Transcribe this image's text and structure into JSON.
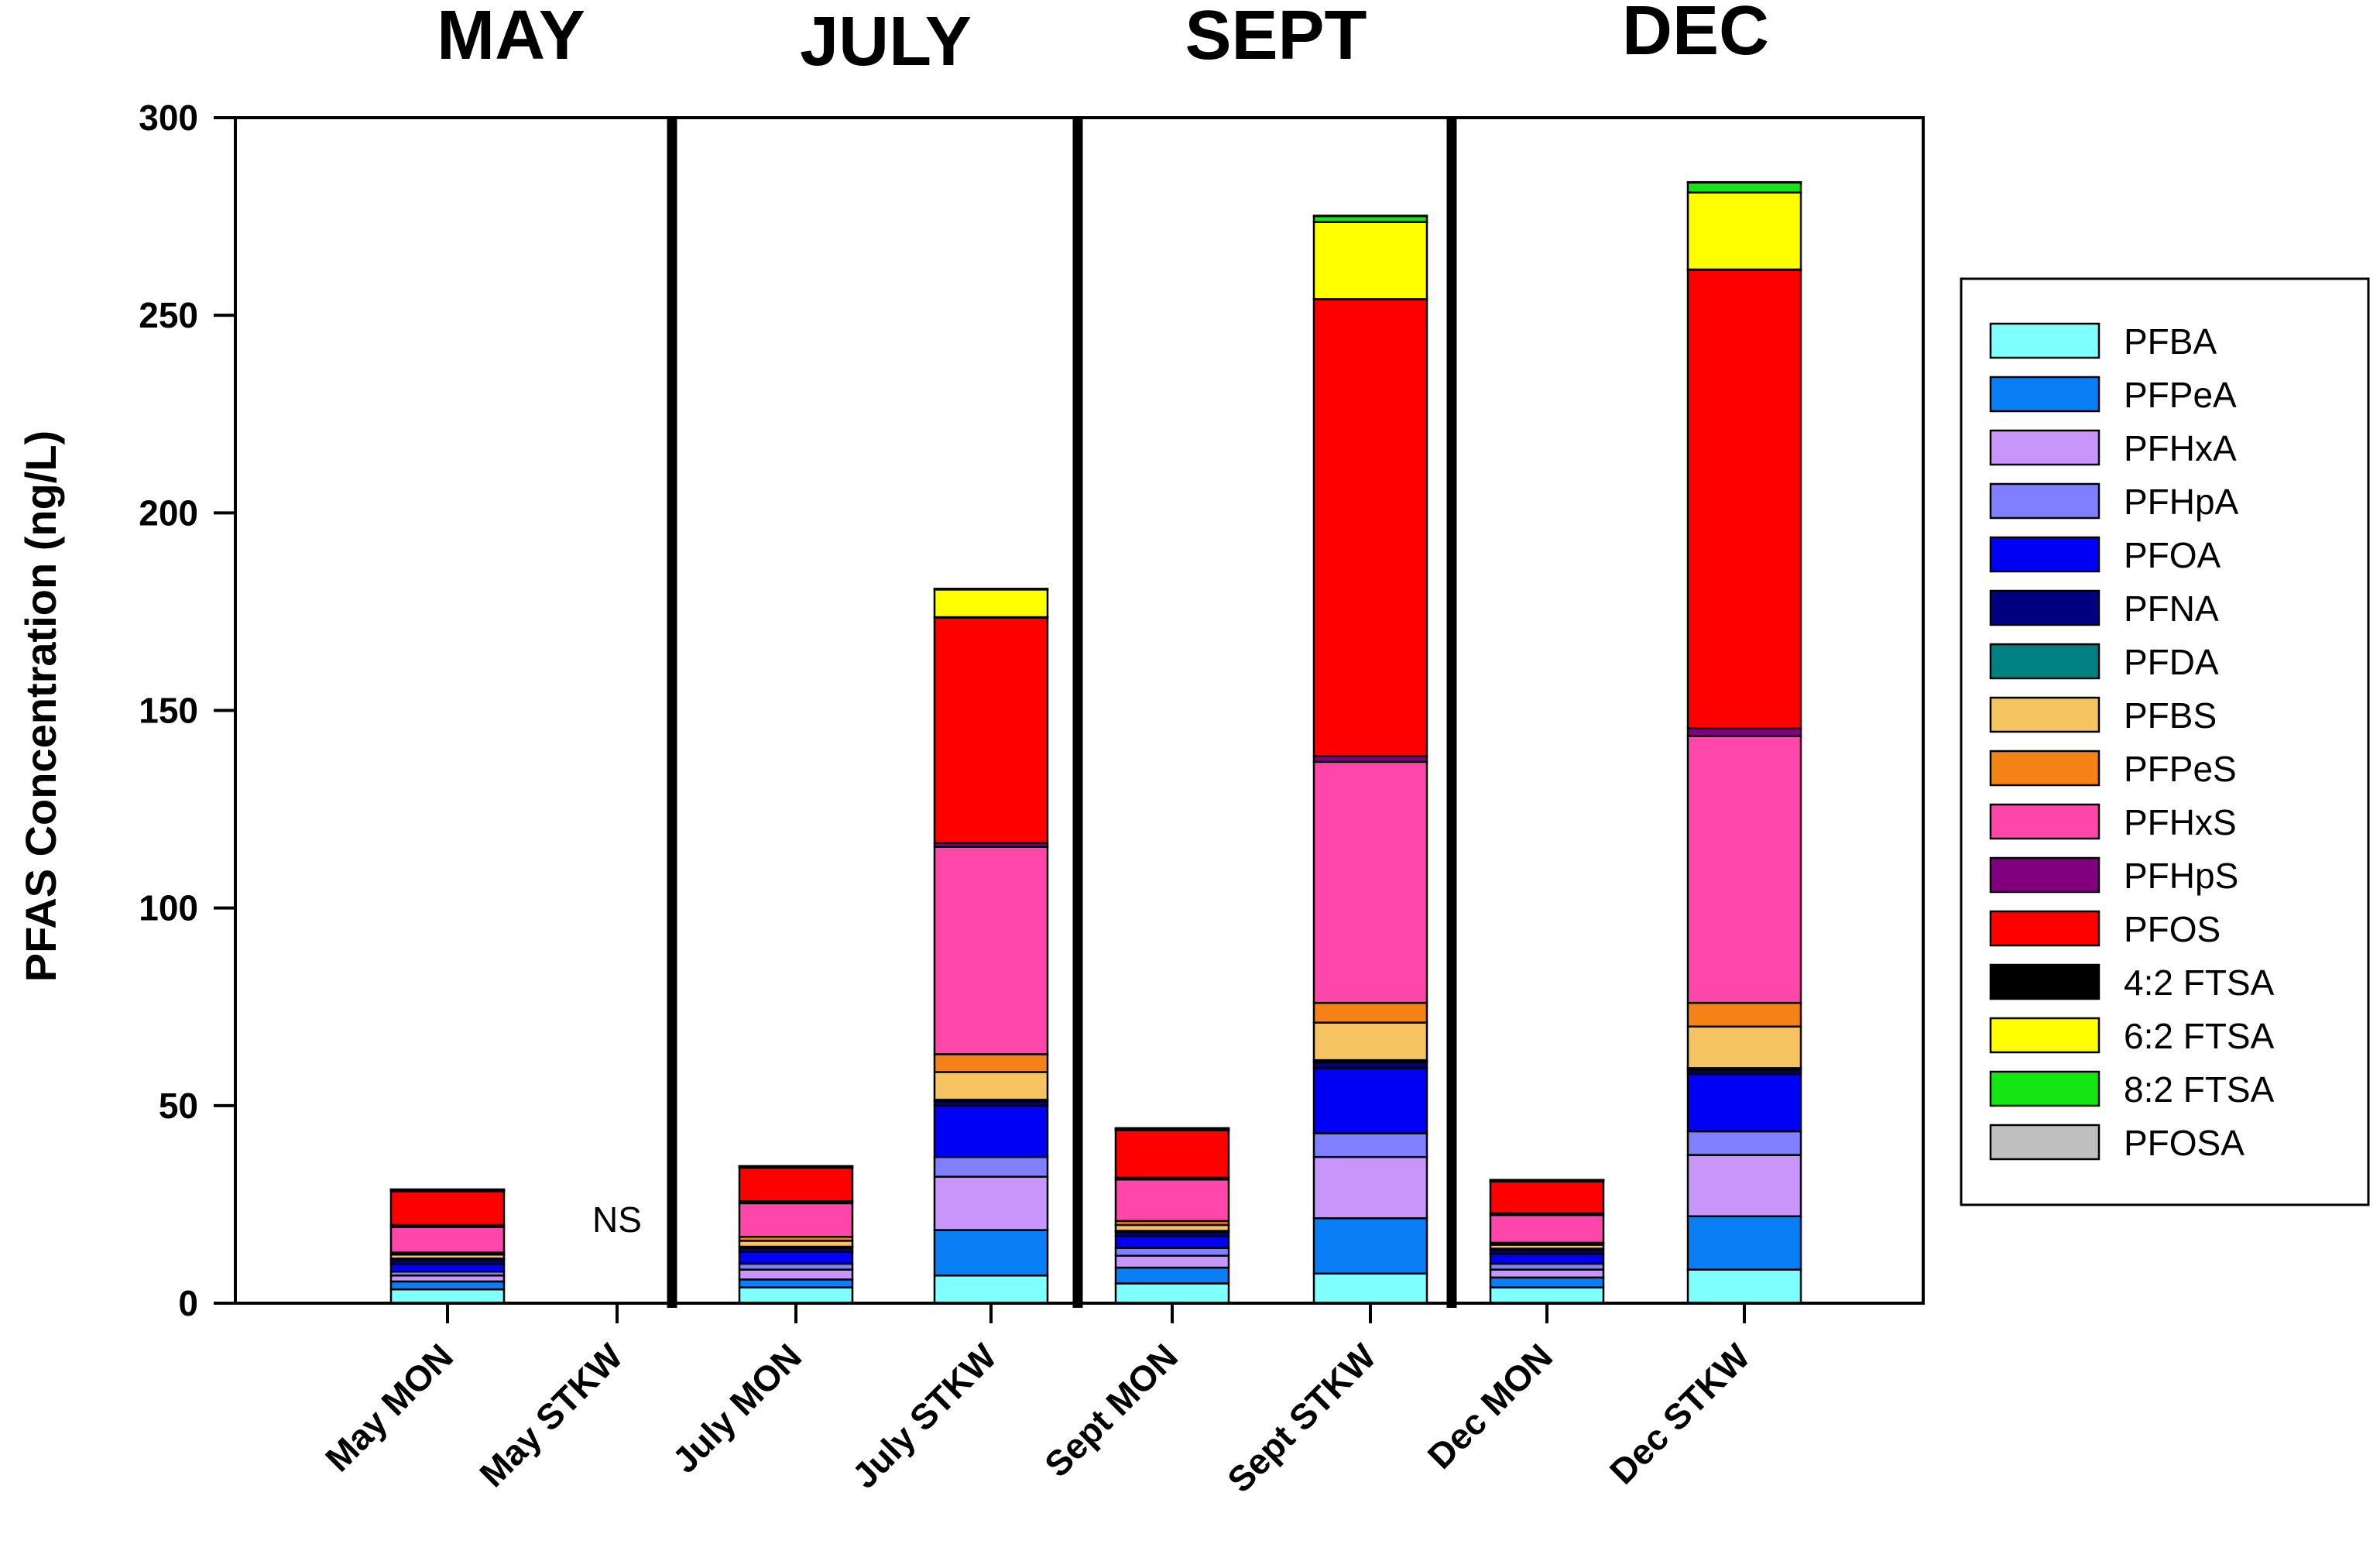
{
  "chart_data": {
    "type": "bar",
    "stacked": true,
    "ylabel": "PFAS Concentration (ng/L)",
    "xlabel": "",
    "ylim": [
      0,
      300
    ],
    "yticks": [
      0,
      50,
      100,
      150,
      200,
      250,
      300
    ],
    "categories": [
      "May MON",
      "May STKW",
      "July MON",
      "July STKW",
      "Sept MON",
      "Sept STKW",
      "Dec MON",
      "Dec STKW"
    ],
    "groups": [
      {
        "label": "MAY",
        "categories": [
          "May MON",
          "May STKW"
        ]
      },
      {
        "label": "JULY",
        "categories": [
          "July MON",
          "July STKW"
        ]
      },
      {
        "label": "SEPT",
        "categories": [
          "Sept MON",
          "Sept STKW"
        ]
      },
      {
        "label": "DEC",
        "categories": [
          "Dec MON",
          "Dec STKW"
        ]
      }
    ],
    "annotations": [
      {
        "category": "May STKW",
        "text": "NS"
      }
    ],
    "legend_position": "right",
    "series": [
      {
        "name": "PFBA",
        "color": "#80ffff",
        "values": [
          3.5,
          null,
          4.0,
          7.0,
          5.0,
          7.5,
          4.0,
          8.5
        ]
      },
      {
        "name": "PFPeA",
        "color": "#0a7ff5",
        "values": [
          2.0,
          null,
          2.0,
          11.5,
          4.0,
          14.0,
          2.5,
          13.5
        ]
      },
      {
        "name": "PFHxA",
        "color": "#c896fa",
        "values": [
          1.5,
          null,
          2.5,
          13.5,
          3.0,
          15.5,
          2.0,
          15.5
        ]
      },
      {
        "name": "PFHpA",
        "color": "#8080ff",
        "values": [
          1.0,
          null,
          1.5,
          5.0,
          2.0,
          6.0,
          1.5,
          6.0
        ]
      },
      {
        "name": "PFOA",
        "color": "#0000f5",
        "values": [
          2.0,
          null,
          3.0,
          13.0,
          3.0,
          16.5,
          2.5,
          14.5
        ]
      },
      {
        "name": "PFNA",
        "color": "#000080",
        "values": [
          1.0,
          null,
          1.0,
          1.0,
          1.0,
          1.5,
          1.0,
          1.0
        ]
      },
      {
        "name": "PFDA",
        "color": "#008080",
        "values": [
          0.3,
          null,
          0.3,
          0.5,
          0.3,
          0.5,
          0.3,
          0.5
        ]
      },
      {
        "name": "PFBS",
        "color": "#f5c35f",
        "values": [
          1.0,
          null,
          1.5,
          7.0,
          1.5,
          9.5,
          1.0,
          10.5
        ]
      },
      {
        "name": "PFPeS",
        "color": "#f58214",
        "values": [
          0.5,
          null,
          1.0,
          4.5,
          1.0,
          5.0,
          0.5,
          6.0
        ]
      },
      {
        "name": "PFHxS",
        "color": "#ff46aa",
        "values": [
          6.5,
          null,
          8.5,
          52.5,
          10.5,
          61.0,
          7.0,
          67.5
        ]
      },
      {
        "name": "PFHpS",
        "color": "#800080",
        "values": [
          0.5,
          null,
          0.5,
          1.0,
          0.5,
          1.5,
          0.5,
          2.0
        ]
      },
      {
        "name": "PFOS",
        "color": "#ff0000",
        "values": [
          8.5,
          null,
          8.5,
          57.0,
          12.0,
          115.5,
          8.0,
          116.0
        ]
      },
      {
        "name": "4:2 FTSA",
        "color": "#000000",
        "values": [
          0.1,
          null,
          0.1,
          0.1,
          0.1,
          0.1,
          0.1,
          0.1
        ]
      },
      {
        "name": "6:2 FTSA",
        "color": "#ffff00",
        "values": [
          0.2,
          null,
          0.1,
          7.0,
          0.2,
          19.5,
          0.1,
          19.5
        ]
      },
      {
        "name": "8:2 FTSA",
        "color": "#14e614",
        "values": [
          0.1,
          null,
          0.1,
          0.1,
          0.1,
          1.5,
          0.1,
          2.5
        ]
      },
      {
        "name": "PFOSA",
        "color": "#c0c0c0",
        "values": [
          0.1,
          null,
          0.1,
          0.1,
          0.1,
          0.1,
          0.1,
          0.1
        ]
      }
    ]
  }
}
